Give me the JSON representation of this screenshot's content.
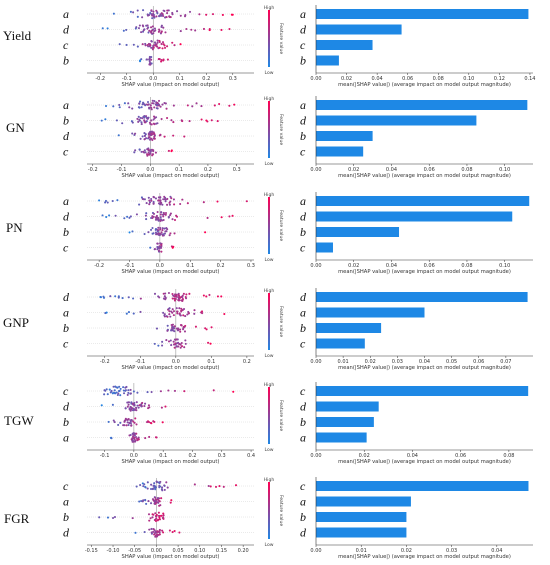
{
  "colors": {
    "low": "#1e88e5",
    "high": "#ff0052",
    "bar": "#1e88e5",
    "grid": "#dddddd",
    "axis": "#333333"
  },
  "beeswarm_axis_title": "SHAP value (impact on model output)",
  "bar_axis_title": "mean(|SHAP value|) (average impact on model output magnitude)",
  "colorbar": {
    "high": "High",
    "low": "Low",
    "title": "Feature value"
  },
  "chart_data": [
    {
      "type": "scatter",
      "row_label": "Yield",
      "features": [
        "a",
        "d",
        "c",
        "b"
      ],
      "xlim": [
        -0.25,
        0.38
      ],
      "xticks": [
        -0.2,
        -0.1,
        0.0,
        0.1,
        0.2,
        0.3
      ],
      "xtick_labels": [
        "-0.2",
        "-0.1",
        "0.0",
        "0.1",
        "0.2",
        "0.3"
      ],
      "spread": [
        [
          -0.19,
          0.36
        ],
        [
          -0.21,
          0.31
        ],
        [
          -0.15,
          0.12
        ],
        [
          -0.05,
          0.07
        ]
      ],
      "center": [
        0.02,
        -0.01,
        0.01,
        -0.01
      ],
      "counts": [
        60,
        50,
        45,
        25
      ]
    },
    {
      "type": "bar",
      "row_label": "Yield",
      "features": [
        "a",
        "d",
        "c",
        "b"
      ],
      "values": [
        0.139,
        0.056,
        0.037,
        0.015
      ],
      "xlim": [
        0,
        0.142
      ],
      "xticks": [
        0.0,
        0.02,
        0.04,
        0.06,
        0.08,
        0.1,
        0.12,
        0.14
      ],
      "xtick_labels": [
        "0.00",
        "0.02",
        "0.04",
        "0.06",
        "0.08",
        "0.10",
        "0.12",
        "0.14"
      ]
    },
    {
      "type": "scatter",
      "row_label": "GN",
      "features": [
        "a",
        "b",
        "d",
        "c"
      ],
      "xlim": [
        -0.22,
        0.36
      ],
      "xticks": [
        -0.2,
        -0.1,
        0.0,
        0.1,
        0.2,
        0.3
      ],
      "xtick_labels": [
        "-0.2",
        "-0.1",
        "0.0",
        "0.1",
        "0.2",
        "0.3"
      ],
      "spread": [
        [
          -0.18,
          0.33
        ],
        [
          -0.17,
          0.24
        ],
        [
          -0.13,
          0.14
        ],
        [
          -0.09,
          0.08
        ]
      ],
      "center": [
        0.0,
        -0.02,
        0.0,
        0.0
      ],
      "counts": [
        60,
        55,
        45,
        35
      ]
    },
    {
      "type": "bar",
      "row_label": "GN",
      "features": [
        "a",
        "d",
        "b",
        "c"
      ],
      "values": [
        0.112,
        0.085,
        0.03,
        0.025
      ],
      "xlim": [
        0,
        0.115
      ],
      "xticks": [
        0.0,
        0.02,
        0.04,
        0.06,
        0.08,
        0.1
      ],
      "xtick_labels": [
        "0.00",
        "0.02",
        "0.04",
        "0.06",
        "0.08",
        "0.10"
      ]
    },
    {
      "type": "scatter",
      "row_label": "PN",
      "features": [
        "a",
        "d",
        "b",
        "c"
      ],
      "xlim": [
        -0.24,
        0.31
      ],
      "xticks": [
        -0.2,
        -0.1,
        0.0,
        0.1,
        0.2,
        0.3
      ],
      "xtick_labels": [
        "-0.2",
        "-0.1",
        "0.0",
        "0.1",
        "0.2",
        "0.3"
      ],
      "spread": [
        [
          -0.22,
          0.29
        ],
        [
          -0.2,
          0.25
        ],
        [
          -0.1,
          0.16
        ],
        [
          -0.04,
          0.05
        ]
      ],
      "center": [
        0.0,
        0.0,
        0.0,
        0.0
      ],
      "counts": [
        60,
        55,
        45,
        25
      ]
    },
    {
      "type": "bar",
      "row_label": "PN",
      "features": [
        "a",
        "d",
        "b",
        "c"
      ],
      "values": [
        0.113,
        0.104,
        0.044,
        0.009
      ],
      "xlim": [
        0,
        0.115
      ],
      "xticks": [
        0.0,
        0.02,
        0.04,
        0.06,
        0.08,
        0.1
      ],
      "xtick_labels": [
        "0.00",
        "0.02",
        "0.04",
        "0.06",
        "0.08",
        "0.10"
      ]
    },
    {
      "type": "scatter",
      "row_label": "GNP",
      "features": [
        "d",
        "a",
        "b",
        "c"
      ],
      "xlim": [
        -0.25,
        0.22
      ],
      "xticks": [
        -0.2,
        -0.1,
        0.0,
        0.1,
        0.2
      ],
      "xtick_labels": [
        "-0.2",
        "-0.1",
        "0.0",
        "0.1",
        "0.2"
      ],
      "spread": [
        [
          -0.22,
          0.14
        ],
        [
          -0.2,
          0.2
        ],
        [
          -0.12,
          0.12
        ],
        [
          -0.09,
          0.1
        ]
      ],
      "center": [
        0.0,
        0.0,
        0.0,
        0.0
      ],
      "counts": [
        65,
        50,
        40,
        35
      ]
    },
    {
      "type": "bar",
      "row_label": "GNP",
      "features": [
        "d",
        "a",
        "b",
        "c"
      ],
      "values": [
        0.078,
        0.04,
        0.024,
        0.018
      ],
      "xlim": [
        0,
        0.08
      ],
      "xticks": [
        0.0,
        0.01,
        0.02,
        0.03,
        0.04,
        0.05,
        0.06,
        0.07
      ],
      "xtick_labels": [
        "0.00",
        "0.01",
        "0.02",
        "0.03",
        "0.04",
        "0.05",
        "0.06",
        "0.07"
      ]
    },
    {
      "type": "scatter",
      "row_label": "TGW",
      "features": [
        "c",
        "d",
        "b",
        "a"
      ],
      "xlim": [
        -0.16,
        0.41
      ],
      "xticks": [
        -0.1,
        0.0,
        0.1,
        0.2,
        0.3,
        0.4
      ],
      "xtick_labels": [
        "-0.1",
        "0.0",
        "0.1",
        "0.2",
        "0.3",
        "0.4"
      ],
      "spread": [
        [
          -0.11,
          0.36
        ],
        [
          -0.11,
          0.17
        ],
        [
          -0.11,
          0.1
        ],
        [
          -0.1,
          0.11
        ]
      ],
      "center": [
        -0.05,
        0.0,
        -0.02,
        0.0
      ],
      "counts": [
        50,
        50,
        40,
        35
      ]
    },
    {
      "type": "bar",
      "row_label": "TGW",
      "features": [
        "c",
        "d",
        "b",
        "a"
      ],
      "values": [
        0.088,
        0.026,
        0.024,
        0.021
      ],
      "xlim": [
        0,
        0.09
      ],
      "xticks": [
        0.0,
        0.02,
        0.04,
        0.06,
        0.08
      ],
      "xtick_labels": [
        "0.00",
        "0.02",
        "0.04",
        "0.06",
        "0.08"
      ]
    },
    {
      "type": "scatter",
      "row_label": "FGR",
      "features": [
        "c",
        "a",
        "b",
        "d"
      ],
      "xlim": [
        -0.16,
        0.225
      ],
      "xticks": [
        -0.15,
        -0.1,
        -0.05,
        0.0,
        0.05,
        0.1,
        0.15,
        0.2
      ],
      "xtick_labels": [
        "-0.15",
        "-0.10",
        "-0.05",
        "0.00",
        "0.05",
        "0.10",
        "0.15",
        "0.20"
      ],
      "spread": [
        [
          -0.06,
          0.21
        ],
        [
          -0.05,
          0.05
        ],
        [
          -0.14,
          0.05
        ],
        [
          -0.07,
          0.06
        ]
      ],
      "center": [
        0.0,
        0.0,
        0.0,
        0.0
      ],
      "counts": [
        45,
        40,
        35,
        35
      ]
    },
    {
      "type": "bar",
      "row_label": "FGR",
      "features": [
        "c",
        "a",
        "b",
        "d"
      ],
      "values": [
        0.047,
        0.021,
        0.02,
        0.02
      ],
      "xlim": [
        0,
        0.048
      ],
      "xticks": [
        0.0,
        0.01,
        0.02,
        0.03,
        0.04
      ],
      "xtick_labels": [
        "0.00",
        "0.01",
        "0.02",
        "0.03",
        "0.04"
      ]
    }
  ]
}
